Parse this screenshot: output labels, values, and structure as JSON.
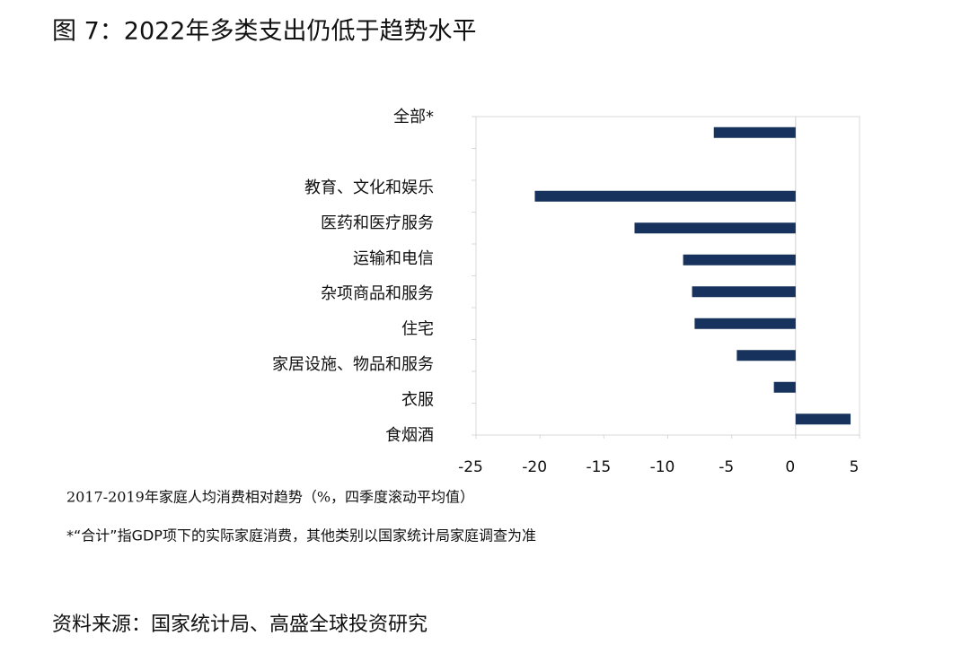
{
  "chart_data": {
    "type": "hbar",
    "title": "图 7：2022年多类支出仍低于趋势水平",
    "categories": [
      "全部*",
      null,
      "教育、文化和娱乐",
      "医药和医疗服务",
      "运输和电信",
      "杂项商品和服务",
      "住宅",
      "家居设施、物品和服务",
      "衣服",
      "食烟酒"
    ],
    "values": [
      -6.4,
      null,
      -20.4,
      -12.6,
      -8.8,
      -8.1,
      -7.9,
      -4.6,
      -1.7,
      4.3
    ],
    "color": "#17325c",
    "xlim": [
      -25,
      5
    ],
    "xticks": [
      -25,
      -20,
      -15,
      -10,
      -5,
      0,
      5
    ],
    "x_label": "2017-2019年家庭人均消费相对趋势（%，四季度滚动平均值）",
    "note": "*“合计”指GDP项下的实际家庭消费，其他类别以国家统计局家庭调查为准",
    "source": "资料来源：国家统计局、高盛全球投资研究"
  }
}
